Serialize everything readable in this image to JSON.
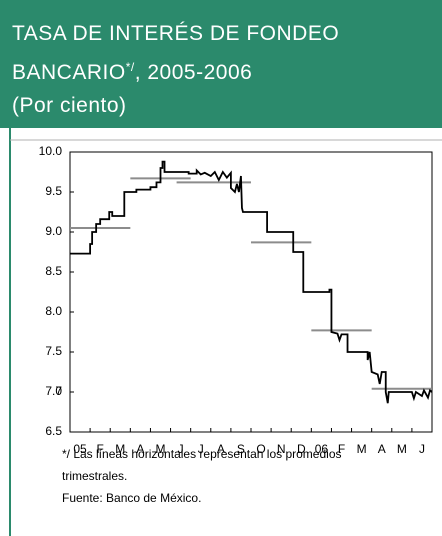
{
  "chart_data": {
    "type": "line",
    "title": [
      "TASA DE INTERÉS DE FONDEO",
      "BANCARIO"
    ],
    "title_marker": "*/",
    "title_suffix": ", 2005-2006",
    "subtitle": "(Por ciento)",
    "categories": [
      "05",
      "F",
      "M",
      "A",
      "M",
      "J",
      "J",
      "A",
      "S",
      "O",
      "N",
      "D",
      "06",
      "F",
      "M",
      "A",
      "M",
      "J"
    ],
    "xlim": [
      0,
      18
    ],
    "ylim": [
      6.5,
      10.0
    ],
    "yticks": [
      {
        "value": 6.5,
        "label": "6.5"
      },
      7,
      {
        "value": 7.0,
        "label": "7.0"
      },
      7.5,
      {
        "value": 8.0,
        "label": "8.0"
      },
      8.5,
      {
        "value": 9.0,
        "label": "9.0"
      },
      9.5,
      {
        "value": 10.0,
        "label": "10.0"
      }
    ],
    "series": [
      {
        "color": "#000000",
        "x": [
          0,
          1.0,
          1.0,
          1.1,
          1.1,
          1.3,
          1.3,
          1.5,
          1.5,
          1.95,
          1.95,
          2.1,
          2.1,
          2.7,
          2.7,
          3.3,
          3.3,
          4.0,
          4.0,
          4.3,
          4.3,
          4.5,
          4.5,
          4.6,
          4.6,
          4.7,
          4.7,
          5.9,
          5.9,
          6.3,
          6.3,
          6.5,
          6.7,
          7.0,
          7.2,
          7.4,
          7.6,
          7.8,
          8.0,
          8.0,
          8.2,
          8.3,
          8.4,
          8.5,
          8.55,
          8.6,
          9.8,
          9.8,
          11.1,
          11.1,
          11.6,
          11.6,
          12.9,
          12.9,
          13.0,
          13.0,
          13.3,
          13.4,
          13.5,
          13.8,
          13.8,
          14.8,
          14.8,
          14.9,
          15.0,
          15.3,
          15.4,
          15.5,
          15.7,
          15.7,
          15.8,
          15.85,
          17.0,
          17.1,
          17.2,
          17.5,
          17.6,
          17.8,
          17.9,
          18.0
        ],
        "values": [
          8.73,
          8.73,
          8.85,
          8.85,
          9.0,
          9.0,
          9.1,
          9.1,
          9.16,
          9.16,
          9.25,
          9.25,
          9.2,
          9.2,
          9.5,
          9.5,
          9.53,
          9.53,
          9.56,
          9.56,
          9.62,
          9.62,
          9.8,
          9.8,
          9.88,
          9.88,
          9.75,
          9.75,
          9.73,
          9.73,
          9.77,
          9.72,
          9.74,
          9.7,
          9.75,
          9.65,
          9.75,
          9.68,
          9.74,
          9.55,
          9.5,
          9.6,
          9.5,
          9.7,
          9.3,
          9.25,
          9.25,
          9.0,
          9.0,
          8.75,
          8.75,
          8.25,
          8.25,
          8.28,
          8.28,
          7.75,
          7.73,
          7.65,
          7.72,
          7.72,
          7.5,
          7.5,
          7.4,
          7.5,
          7.25,
          7.22,
          7.1,
          7.25,
          7.25,
          7.0,
          6.86,
          7.0,
          7.0,
          6.92,
          7.0,
          6.95,
          7.02,
          6.93,
          7.02,
          7.0
        ]
      }
    ],
    "averages": {
      "color": "#8c8c8c",
      "x_start": [
        0,
        3,
        5.3,
        9,
        12,
        15
      ],
      "x_end": [
        3,
        6,
        9,
        12,
        15,
        18
      ],
      "values": [
        9.05,
        9.67,
        9.62,
        8.87,
        7.77,
        7.04
      ]
    },
    "footnote": [
      "*/ Las líneas horizontales representan los promedios",
      "trimestrales."
    ],
    "source": "Fuente: Banco de México."
  }
}
